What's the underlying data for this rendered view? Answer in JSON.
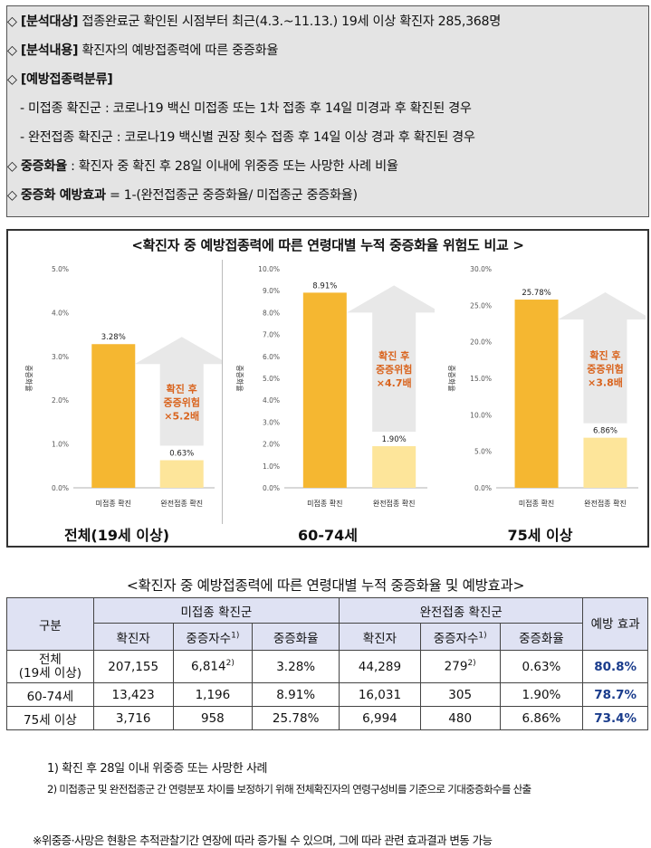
{
  "info": {
    "l1": {
      "sym": "◇",
      "label": "[분석대상]",
      "text": "접종완료군 확인된 시점부터 최근(4.3.~11.13.) 19세 이상 확진자 285,368명"
    },
    "l2": {
      "sym": "◇",
      "label": "[분석내용]",
      "text": "확진자의 예방접종력에 따른 중증화율"
    },
    "l3": {
      "sym": "◇",
      "label": "[예방접종력분류]"
    },
    "l4": "- 미접종 확진군 : 코로나19 백신 미접종 또는 1차 접종 후 14일 미경과 후 확진된 경우",
    "l5": "- 완전접종 확진군 : 코로나19 백신별 권장 횟수 접종 후 14일 이상 경과 후 확진된 경우",
    "l6": {
      "sym": "◇",
      "label": "중증화율",
      "text": ": 확진자 중 확진 후 28일 이내에 위중증 또는 사망한 사례 비율"
    },
    "l7": {
      "sym": "◇",
      "label": "중증화 예방효과",
      "text": "= 1-(완전접종군 중증화율/ 미접종군 중증화율)"
    }
  },
  "chart_data": [
    {
      "type": "bar",
      "panel": "전체(19세 이상)",
      "categories": [
        "미접종 확진",
        "완전접종 확진"
      ],
      "values": [
        3.28,
        0.63
      ],
      "value_labels": [
        "3.28%",
        "0.63%"
      ],
      "ylim": [
        0,
        5
      ],
      "ticks": [
        "0.0%",
        "1.0%",
        "2.0%",
        "3.0%",
        "4.0%",
        "5.0%"
      ],
      "tick_values": [
        0,
        1,
        2,
        3,
        4,
        5
      ],
      "ylabel": "중증화율",
      "arrow_text": [
        "확진 후",
        "중증위험",
        "×5.2배"
      ]
    },
    {
      "type": "bar",
      "panel": "60-74세",
      "categories": [
        "미접종 확진",
        "완전접종 확진"
      ],
      "values": [
        8.91,
        1.9
      ],
      "value_labels": [
        "8.91%",
        "1.90%"
      ],
      "ylim": [
        0,
        10
      ],
      "ticks": [
        "0.0%",
        "1.0%",
        "2.0%",
        "3.0%",
        "4.0%",
        "5.0%",
        "6.0%",
        "7.0%",
        "8.0%",
        "9.0%",
        "10.0%"
      ],
      "tick_values": [
        0,
        1,
        2,
        3,
        4,
        5,
        6,
        7,
        8,
        9,
        10
      ],
      "ylabel": "중증화율",
      "arrow_text": [
        "확진 후",
        "중증위험",
        "×4.7배"
      ]
    },
    {
      "type": "bar",
      "panel": "75세 이상",
      "categories": [
        "미접종 확진",
        "완전접종 확진"
      ],
      "values": [
        25.78,
        6.86
      ],
      "value_labels": [
        "25.78%",
        "6.86%"
      ],
      "ylim": [
        0,
        30
      ],
      "ticks": [
        "0.0%",
        "5.0%",
        "10.0%",
        "15.0%",
        "20.0%",
        "25.0%",
        "30.0%"
      ],
      "tick_values": [
        0,
        5,
        10,
        15,
        20,
        25,
        30
      ],
      "ylabel": "중증화율",
      "arrow_text": [
        "확진 후",
        "중증위험",
        "×3.8배"
      ]
    }
  ],
  "chart_title": "<확진자 중 예방접종력에 따른 연령대별 누적 중증화율 위험도 비교 >",
  "colors": {
    "bar_unvax": "#f5b731",
    "bar_full": "#fde59a",
    "arrow": "#e8e8e8",
    "arrow_text": "#d9641e",
    "effect": "#1a3c8c"
  },
  "table": {
    "title": "<확진자 중 예방접종력에 따른 연령대별 누적 중증화율 및 예방효과>",
    "h_group": "구분",
    "h_unvax": "미접종 확진군",
    "h_full": "완전접종 확진군",
    "h_effect": "예방 효과",
    "h_cases": "확진자",
    "h_severe": "중증자수",
    "h_severe_sup": "1)",
    "h_rate": "중증화율",
    "rows": [
      {
        "g1": "전체",
        "g2": "(19세 이상)",
        "c1": "207,155",
        "s1": "6,814",
        "s1sup": "2)",
        "r1": "3.28%",
        "c2": "44,289",
        "s2": "279",
        "s2sup": "2)",
        "r2": "0.63%",
        "e": "80.8%"
      },
      {
        "g1": "60-74세",
        "g2": "",
        "c1": "13,423",
        "s1": "1,196",
        "s1sup": "",
        "r1": "8.91%",
        "c2": "16,031",
        "s2": "305",
        "s2sup": "",
        "r2": "1.90%",
        "e": "78.7%"
      },
      {
        "g1": "75세 이상",
        "g2": "",
        "c1": "3,716",
        "s1": "958",
        "s1sup": "",
        "r1": "25.78%",
        "c2": "6,994",
        "s2": "480",
        "s2sup": "",
        "r2": "6.86%",
        "e": "73.4%"
      }
    ]
  },
  "notes": {
    "n1": "1) 확진 후 28일 이내 위중증 또는 사망한 사례",
    "n2": "2) 미접종군 및 완전접종군 간 연령분포 차이를 보정하기 위해 전체확진자의 연령구성비를 기준으로 기대중증화수를 산출",
    "foot": "※위중증·사망은 현황은 추적관찰기간 연장에 따라 증가될 수 있으며, 그에 따라 관련 효과결과 변동 가능"
  }
}
